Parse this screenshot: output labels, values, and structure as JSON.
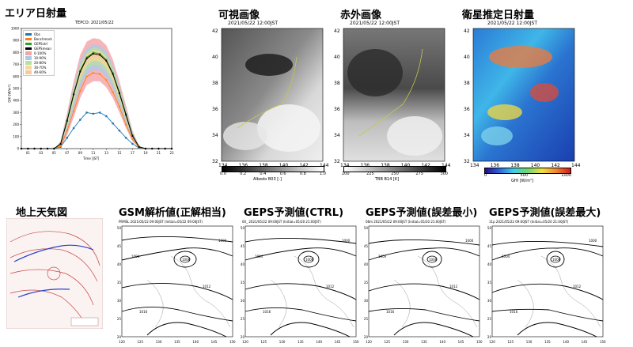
{
  "sections": {
    "area_solar": "エリア日射量",
    "visible": "可視画像",
    "infrared": "赤外画像",
    "satellite_ghi": "衛星推定日射量",
    "surface_map": "地上天気図",
    "gsm": "GSM解析値(正解相当)",
    "geps_ctrl": "GEPS予測値(CTRL)",
    "geps_min": "GEPS予測値(誤差最小)",
    "geps_max": "GEPS予測値(誤差最大)"
  },
  "image_times": {
    "visible": "2021/05/22 12:00JST",
    "infrared": "2021/05/22 12:00JST",
    "ghi": "2021/05/22 12:00JST"
  },
  "colorbars": {
    "visible": {
      "label": "Albedo B03 [-]",
      "ticks": [
        "0.0",
        "0.2",
        "0.4",
        "0.6",
        "0.8",
        "1.0"
      ]
    },
    "infrared": {
      "label": "TBB B14 [K]",
      "ticks": [
        "200",
        "225",
        "250",
        "275",
        "300"
      ]
    },
    "ghi": {
      "label": "GHI [W/m²]",
      "ticks": [
        "0",
        "500",
        "1000"
      ]
    }
  },
  "map_axes": {
    "lat_ticks": [
      "42",
      "40",
      "38",
      "36",
      "34",
      "32"
    ],
    "lon_ticks": [
      "134",
      "136",
      "138",
      "140",
      "142",
      "144"
    ]
  },
  "forecast_headers": {
    "gsm": "PRMSL  2021/05/22 09:00JST  (Initial=05/22 09:00JST)",
    "geps_ctrl": "00_  2021/05/22 09:00JST  (Initial=05/20 21:00JST)",
    "geps_min": "08m  2021/05/22 09:00JST  (Initial=05/20 21:00JST)",
    "geps_max": "11p  2021/05/22 09:00JST  (Initial=05/20 21:00JST)"
  },
  "forecast_lon_ticks": [
    "120",
    "125",
    "130",
    "135",
    "140",
    "145",
    "150"
  ],
  "forecast_lat_ticks": [
    "50",
    "45",
    "40",
    "35",
    "30",
    "25",
    "20"
  ],
  "isobar_labels": [
    "1008",
    "1004",
    "1012",
    "1016",
    "1000"
  ],
  "chart_data": {
    "type": "line",
    "title": "TEPCO: 2021/05/22",
    "xlabel": "Time [JST]",
    "ylabel": "GHI [W/m²]",
    "categories": [
      "01",
      "03",
      "05",
      "07",
      "09",
      "11",
      "13",
      "15",
      "17",
      "19",
      "21",
      "23"
    ],
    "x": [
      0,
      1,
      2,
      3,
      4,
      5,
      6,
      7,
      8,
      9,
      10,
      11,
      12,
      13,
      14,
      15,
      16,
      17,
      18,
      19,
      20,
      21,
      22,
      23
    ],
    "ylim": [
      0,
      1000
    ],
    "yticks": [
      "0",
      "100",
      "200",
      "300",
      "400",
      "500",
      "600",
      "700",
      "800",
      "900",
      "1000"
    ],
    "legend": [
      "Obs",
      "Benchmark",
      "GEPSctrl",
      "GEPSmean",
      "0-100%",
      "10-90%",
      "20-80%",
      "30-70%",
      "40-60%"
    ],
    "colors": {
      "Obs": "#1f77b4",
      "Benchmark": "#ff7f0e",
      "GEPSctrl": "#2ca02c",
      "GEPSmean": "#000000",
      "b0": "#f4a3a8",
      "b1": "#a8cce8",
      "b2": "#b7e0a4",
      "b3": "#f7d79a",
      "b4": "#f8c99c"
    },
    "series": [
      {
        "name": "Obs",
        "values": [
          0,
          0,
          0,
          0,
          0,
          0,
          15,
          90,
          170,
          240,
          300,
          290,
          300,
          270,
          210,
          150,
          90,
          40,
          5,
          0,
          0,
          0,
          0,
          0
        ]
      },
      {
        "name": "Benchmark",
        "values": [
          0,
          0,
          0,
          0,
          0,
          0,
          20,
          150,
          310,
          480,
          600,
          630,
          620,
          570,
          470,
          350,
          200,
          80,
          10,
          0,
          0,
          0,
          0,
          0
        ]
      },
      {
        "name": "GEPSctrl",
        "values": [
          0,
          0,
          0,
          0,
          0,
          0,
          40,
          240,
          460,
          650,
          760,
          800,
          790,
          740,
          630,
          470,
          290,
          110,
          15,
          0,
          0,
          0,
          0,
          0
        ]
      },
      {
        "name": "GEPSmean",
        "values": [
          0,
          0,
          0,
          0,
          0,
          0,
          38,
          230,
          450,
          640,
          750,
          790,
          780,
          730,
          620,
          460,
          280,
          105,
          14,
          0,
          0,
          0,
          0,
          0
        ]
      }
    ],
    "band_upper": [
      0,
      0,
      0,
      0,
      0,
      0,
      60,
      300,
      560,
      780,
      890,
      920,
      910,
      860,
      740,
      560,
      360,
      150,
      25,
      0,
      0,
      0,
      0,
      0
    ],
    "band_lower": [
      0,
      0,
      0,
      0,
      0,
      0,
      10,
      110,
      260,
      420,
      530,
      560,
      560,
      510,
      420,
      300,
      170,
      60,
      5,
      0,
      0,
      0,
      0,
      0
    ]
  }
}
